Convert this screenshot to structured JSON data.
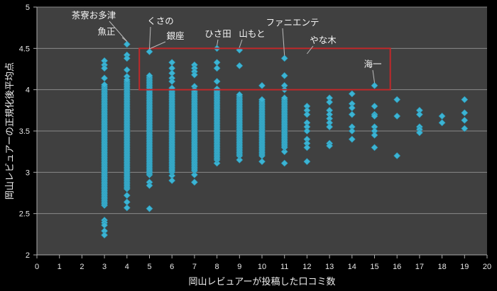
{
  "chart_data": {
    "type": "scatter",
    "title": "",
    "xlabel": "岡山レビュアーが投稿した口コミ数",
    "ylabel": "岡山レビュアーの正規化後平均点",
    "xlim": [
      0,
      20
    ],
    "ylim": [
      2,
      5
    ],
    "xticks": [
      "0",
      "1",
      "2",
      "3",
      "4",
      "5",
      "6",
      "7",
      "8",
      "9",
      "10",
      "11",
      "12",
      "13",
      "14",
      "15",
      "16",
      "17",
      "18",
      "19",
      "20"
    ],
    "yticks": [
      "2",
      "2.5",
      "3",
      "3.5",
      "4",
      "4.5",
      "5"
    ],
    "grid": "horizontal",
    "marker": "diamond",
    "marker_color": "#3cb4d4",
    "plot_bg": "#404040",
    "highlight_box": {
      "x": [
        4.55,
        15.7
      ],
      "y": [
        4.0,
        4.5
      ],
      "color": "#c0282a"
    },
    "columns": [
      {
        "x": 3,
        "y": [
          4.35,
          4.3,
          4.26,
          4.14,
          2.42,
          2.39,
          2.36,
          2.29,
          2.24
        ],
        "dense": [
          2.6,
          4.07
        ]
      },
      {
        "x": 4,
        "y": [
          4.55,
          4.42,
          4.38,
          4.24,
          4.16,
          2.72,
          2.64,
          2.57
        ],
        "dense": [
          2.8,
          4.12
        ]
      },
      {
        "x": 5,
        "y": [
          4.46,
          2.88,
          2.84,
          2.56
        ],
        "dense": [
          2.97,
          4.17
        ]
      },
      {
        "x": 6,
        "y": [
          4.33,
          4.26,
          4.2,
          4.14,
          4.1,
          2.96,
          2.9
        ],
        "dense": [
          3.0,
          4.03
        ]
      },
      {
        "x": 7,
        "y": [
          4.3,
          4.26,
          4.22,
          4.18,
          4.04,
          2.97,
          2.88
        ],
        "dense": [
          3.02,
          4.0
        ]
      },
      {
        "x": 8,
        "y": [
          4.5,
          4.33,
          4.26,
          4.1,
          3.11
        ],
        "dense": [
          3.15,
          4.02
        ]
      },
      {
        "x": 9,
        "y": [
          4.48,
          4.29,
          3.15
        ],
        "dense": [
          3.2,
          3.95
        ]
      },
      {
        "x": 10,
        "y": [
          4.05,
          3.13
        ],
        "dense": [
          3.2,
          3.88
        ]
      },
      {
        "x": 11,
        "y": [
          4.38,
          4.17,
          4.05,
          4.0,
          3.25,
          3.11
        ],
        "dense": [
          3.3,
          3.9
        ]
      },
      {
        "x": 12,
        "y": [
          3.8,
          3.75,
          3.7,
          3.6,
          3.55,
          3.5,
          3.4,
          3.35,
          3.3,
          3.13
        ]
      },
      {
        "x": 13,
        "y": [
          3.9,
          3.85,
          3.75,
          3.7,
          3.65,
          3.6,
          3.55,
          3.35,
          3.32
        ]
      },
      {
        "x": 14,
        "y": [
          3.95,
          3.83,
          3.78,
          3.7,
          3.55,
          3.5,
          3.4
        ]
      },
      {
        "x": 15,
        "y": [
          4.05,
          3.8,
          3.7,
          3.68,
          3.55,
          3.5,
          3.45,
          3.3
        ]
      },
      {
        "x": 16,
        "y": [
          3.88,
          3.68,
          3.2
        ]
      },
      {
        "x": 17,
        "y": [
          3.75,
          3.7,
          3.55,
          3.52,
          3.48
        ]
      },
      {
        "x": 18,
        "y": [
          3.68,
          3.6
        ]
      },
      {
        "x": 19,
        "y": [
          3.88,
          3.72,
          3.63,
          3.53
        ]
      }
    ],
    "annotations": [
      {
        "text": "茶寮お多津",
        "x": 4,
        "y": 4.55
      },
      {
        "text": "魚正",
        "x": 4,
        "y": 4.55
      },
      {
        "text": "くさの",
        "x": 5,
        "y": 4.46
      },
      {
        "text": "銀座",
        "x": 5,
        "y": 4.46
      },
      {
        "text": "ひさ田",
        "x": 8,
        "y": 4.5
      },
      {
        "text": "山もと",
        "x": 9,
        "y": 4.48
      },
      {
        "text": "ファニエンテ",
        "x": 11,
        "y": 4.38
      },
      {
        "text": "やな木",
        "x": 12,
        "y": 4.4
      },
      {
        "text": "海一",
        "x": 15,
        "y": 4.05
      }
    ]
  }
}
